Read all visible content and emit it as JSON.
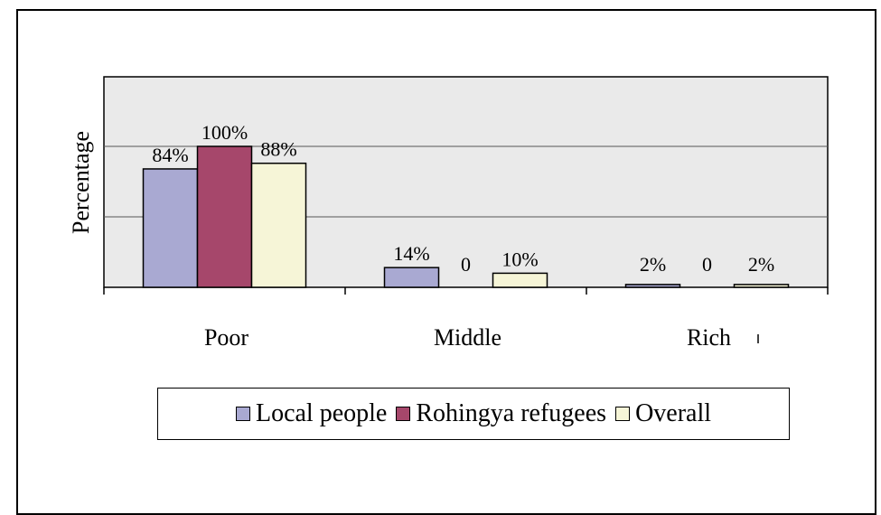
{
  "chart_data": {
    "type": "bar",
    "title": "",
    "xlabel": "",
    "ylabel": "Percentage",
    "ylim": [
      0,
      100
    ],
    "grid": true,
    "legend_position": "bottom",
    "categories": [
      "Poor",
      "Middle",
      "Rich"
    ],
    "series": [
      {
        "name": "Local people",
        "color": "#a9a9d2",
        "values": [
          84,
          14,
          2
        ],
        "labels": [
          "84%",
          "14%",
          "2%"
        ]
      },
      {
        "name": "Rohingya refugees",
        "color": "#a6476b",
        "values": [
          100,
          0,
          0
        ],
        "labels": [
          "100%",
          "0",
          "0"
        ]
      },
      {
        "name": "Overall",
        "color": "#f6f5d7",
        "values": [
          88,
          10,
          2
        ],
        "labels": [
          "88%",
          "10%",
          "2%"
        ]
      }
    ]
  }
}
